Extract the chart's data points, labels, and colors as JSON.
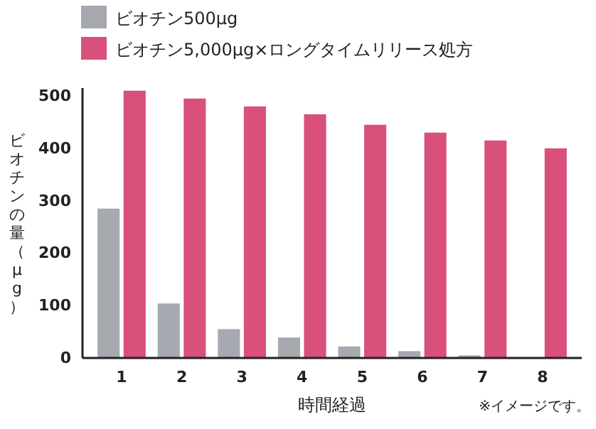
{
  "chart_data": {
    "type": "bar",
    "xlabel": "時間経過",
    "ylabel": "ビオチンの量（μg）",
    "categories": [
      "1",
      "2",
      "3",
      "4",
      "5",
      "6",
      "7",
      "8"
    ],
    "series": [
      {
        "name": "ビオチン500μg",
        "color": "#a7a9b0",
        "values": [
          285,
          104,
          55,
          39,
          22,
          13,
          5,
          null
        ]
      },
      {
        "name": "ビオチン5,000μg×ロングタイムリリース処方",
        "color": "#d9507a",
        "values": [
          510,
          495,
          480,
          465,
          445,
          430,
          415,
          400
        ]
      }
    ],
    "ylim": [
      0,
      515
    ],
    "yticks": [
      0,
      100,
      200,
      300,
      400,
      500
    ],
    "grid": false,
    "legend": "top left",
    "annotations": [
      "※イメージです。"
    ]
  }
}
